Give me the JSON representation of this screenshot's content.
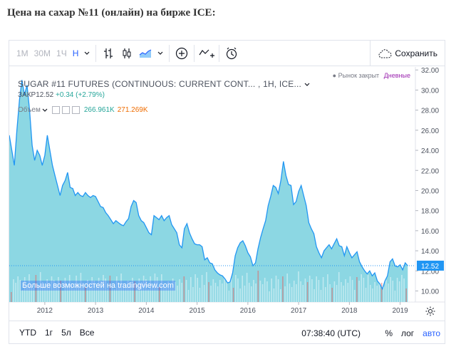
{
  "page": {
    "title": "Цена на сахар №11 (онлайн) на бирже ICE:"
  },
  "toolbar": {
    "intervals": [
      "1М",
      "30М",
      "1Ч",
      "Н"
    ],
    "active_interval": "Н",
    "save_label": "Сохранить"
  },
  "legend": {
    "symbol": "SUGAR #11 FUTURES (CONTINUOUS: CURRENT CONT...",
    "interval": ", 1H, ICE...",
    "close_label": "ЗАКР",
    "close_value": "12.52",
    "change": "+0.34 (+2.79%)",
    "volume_label": "Объем",
    "volume_1": "266.961K",
    "volume_2": "271.269K",
    "market_status": "Рынок закрыт",
    "timeframe": "Дневные",
    "watermark": "Больше возможностей на tradingview.com"
  },
  "bottom": {
    "ranges": [
      "YTD",
      "1г",
      "5л",
      "Все"
    ],
    "time": "07:38:40 (UTC)",
    "percent": "%",
    "log": "лог",
    "auto": "авто"
  },
  "colors": {
    "area_line": "#2196f3",
    "area_fill": "#7fd3e0",
    "up_volume": "#26a69a",
    "down_volume": "#ef5350",
    "price_label": "#2196f3"
  },
  "chart_data": {
    "type": "area",
    "title": "SUGAR #11 FUTURES (CONTINUOUS: CURRENT CONT...",
    "xlabel": "",
    "ylabel": "",
    "x_ticks": [
      "2012",
      "2013",
      "2014",
      "2015",
      "2016",
      "2017",
      "2018",
      "2019"
    ],
    "y_ticks": [
      10.0,
      12.0,
      14.0,
      16.0,
      18.0,
      20.0,
      22.0,
      24.0,
      26.0,
      28.0,
      30.0,
      32.0
    ],
    "ylim": [
      8.9,
      32.3
    ],
    "xlim": [
      2011.3,
      2019.3
    ],
    "last_price": "12.52",
    "series": [
      {
        "x": [
          2011.3,
          2011.35,
          2011.4,
          2011.45,
          2011.5,
          2011.55,
          2011.6,
          2011.65,
          2011.7,
          2011.75,
          2011.8,
          2011.85,
          2011.9,
          2011.95,
          2012.0,
          2012.05,
          2012.1,
          2012.15,
          2012.2,
          2012.25,
          2012.3,
          2012.35,
          2012.4,
          2012.45,
          2012.5,
          2012.55,
          2012.6,
          2012.65,
          2012.7,
          2012.75,
          2012.8,
          2012.85,
          2012.9,
          2012.95,
          2013.0,
          2013.05,
          2013.1,
          2013.15,
          2013.2,
          2013.25,
          2013.3,
          2013.35,
          2013.4,
          2013.45,
          2013.5,
          2013.55,
          2013.6,
          2013.65,
          2013.7,
          2013.75,
          2013.8,
          2013.85,
          2013.9,
          2013.95,
          2014.0,
          2014.05,
          2014.1,
          2014.15,
          2014.2,
          2014.25,
          2014.3,
          2014.35,
          2014.4,
          2014.45,
          2014.5,
          2014.55,
          2014.6,
          2014.65,
          2014.7,
          2014.75,
          2014.8,
          2014.85,
          2014.9,
          2014.95,
          2015.0,
          2015.05,
          2015.1,
          2015.15,
          2015.2,
          2015.25,
          2015.3,
          2015.35,
          2015.4,
          2015.45,
          2015.5,
          2015.55,
          2015.6,
          2015.65,
          2015.7,
          2015.75,
          2015.8,
          2015.85,
          2015.9,
          2015.95,
          2016.0,
          2016.05,
          2016.1,
          2016.15,
          2016.2,
          2016.25,
          2016.3,
          2016.35,
          2016.4,
          2016.45,
          2016.5,
          2016.55,
          2016.6,
          2016.65,
          2016.7,
          2016.75,
          2016.8,
          2016.85,
          2016.9,
          2016.95,
          2017.0,
          2017.05,
          2017.1,
          2017.15,
          2017.2,
          2017.25,
          2017.3,
          2017.35,
          2017.4,
          2017.45,
          2017.5,
          2017.55,
          2017.6,
          2017.65,
          2017.7,
          2017.75,
          2017.8,
          2017.85,
          2017.9,
          2017.95,
          2018.0,
          2018.05,
          2018.1,
          2018.15,
          2018.2,
          2018.25,
          2018.3,
          2018.35,
          2018.4,
          2018.45,
          2018.5,
          2018.55,
          2018.6,
          2018.65,
          2018.7,
          2018.75,
          2018.8,
          2018.85,
          2018.9,
          2018.95,
          2019.0,
          2019.05,
          2019.1,
          2019.15
        ],
        "values": [
          25.5,
          24.0,
          22.5,
          26.0,
          29.0,
          31.0,
          29.5,
          30.5,
          28.0,
          24.5,
          23.0,
          24.0,
          23.5,
          22.5,
          23.5,
          25.5,
          24.0,
          22.5,
          21.5,
          20.5,
          19.5,
          20.5,
          21.0,
          21.8,
          20.3,
          20.2,
          19.5,
          19.8,
          19.5,
          19.4,
          19.8,
          19.5,
          19.3,
          19.5,
          19.4,
          18.9,
          18.4,
          18.3,
          17.8,
          17.5,
          17.1,
          16.7,
          17.0,
          16.8,
          16.6,
          16.5,
          16.9,
          17.2,
          18.4,
          19.0,
          18.8,
          17.5,
          17.0,
          16.8,
          16.3,
          15.8,
          15.6,
          17.5,
          17.3,
          17.1,
          17.5,
          17.0,
          17.3,
          17.5,
          16.6,
          16.2,
          15.8,
          14.6,
          14.3,
          16.2,
          16.7,
          15.8,
          15.2,
          14.7,
          14.6,
          14.6,
          14.4,
          13.1,
          13.3,
          12.8,
          12.7,
          12.1,
          11.8,
          11.6,
          11.5,
          11.2,
          10.8,
          10.9,
          11.8,
          13.5,
          14.3,
          14.8,
          15.0,
          14.5,
          13.8,
          13.4,
          12.5,
          12.8,
          14.2,
          15.3,
          16.2,
          17.0,
          18.5,
          19.4,
          20.5,
          20.3,
          19.7,
          21.0,
          22.9,
          21.5,
          20.6,
          20.5,
          18.6,
          18.9,
          19.9,
          20.5,
          19.5,
          18.5,
          16.8,
          16.2,
          15.7,
          14.4,
          13.8,
          13.3,
          14.0,
          14.3,
          14.6,
          14.2,
          14.7,
          15.2,
          14.5,
          14.4,
          13.5,
          14.4,
          13.8,
          13.3,
          13.6,
          13.9,
          12.9,
          12.4,
          12.0,
          11.7,
          12.0,
          11.5,
          11.8,
          11.0,
          10.7,
          10.2,
          11.0,
          11.5,
          12.9,
          13.2,
          12.5,
          12.4,
          12.6,
          12.1,
          12.8,
          12.5
        ]
      }
    ]
  }
}
